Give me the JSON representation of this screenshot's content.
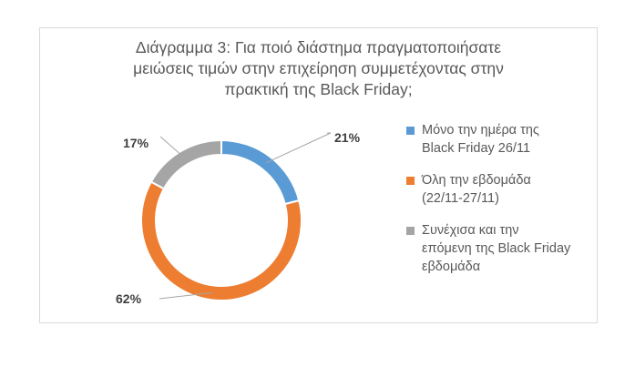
{
  "chart_data": {
    "type": "pie",
    "donut": true,
    "title": "Διάγραμμα 3: Για ποιό διάστημα πραγματοποιήσατε μειώσεις τιμών στην επιχείρηση συμμετέχοντας στην πρακτική της Black Friday;",
    "title_lines": [
      "Διάγραμμα 3: Για ποιό διάστημα πραγματοποιήσατε",
      "μειώσεις τιμών στην επιχείρηση συμμετέχοντας στην",
      "πρακτική της Black Friday;"
    ],
    "slices": [
      {
        "label": "Μόνο την ημέρα της Black Friday 26/11",
        "legend_lines": [
          "Μόνο την ημέρα της",
          "Black Friday 26/11"
        ],
        "value": 21,
        "data_label": "21%",
        "color": "#5B9BD5"
      },
      {
        "label": "Όλη την εβδομάδα (22/11-27/11)",
        "legend_lines": [
          "Όλη την εβδομάδα",
          "(22/11-27/11)"
        ],
        "value": 62,
        "data_label": "62%",
        "color": "#ED7D31"
      },
      {
        "label": "Συνέχισα και την επόμενη της Black Friday εβδομάδα",
        "legend_lines": [
          "Συνέχισα και την",
          "επόμενη της Black Friday",
          "εβδομάδα"
        ],
        "value": 17,
        "data_label": "17%",
        "color": "#A5A5A5"
      }
    ],
    "legend_position": "right",
    "start_angle_deg": 0,
    "direction": "clockwise"
  }
}
